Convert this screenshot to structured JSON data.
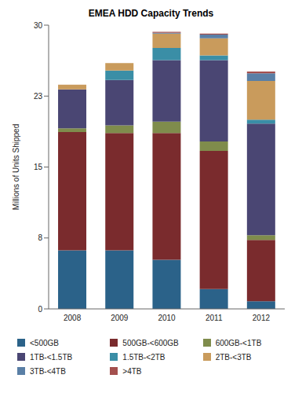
{
  "chart_data": {
    "type": "bar",
    "title": "EMEA HDD Capacity Trends",
    "y_label": "Millions of Units Shipped",
    "categories": [
      "2008",
      "2009",
      "2010",
      "2011",
      "2012"
    ],
    "stacked": true,
    "grid": false,
    "legend": "bottom",
    "ylim": [
      0,
      30
    ],
    "yticks": [
      0,
      {
        "value": 7.5,
        "label": "8"
      },
      15,
      {
        "value": 22.5,
        "label": "23"
      },
      30
    ],
    "series": [
      {
        "name": "<500GB",
        "color": "#2b6289",
        "values": [
          6.2,
          6.2,
          5.2,
          2.1,
          0.8
        ]
      },
      {
        "name": "500GB-<600GB",
        "color": "#7a2b2d",
        "values": [
          12.5,
          12.4,
          13.4,
          14.6,
          6.5
        ]
      },
      {
        "name": "600GB-<1TB",
        "color": "#7f8c4c",
        "values": [
          0.4,
          0.8,
          1.2,
          1.0,
          0.5
        ]
      },
      {
        "name": "1TB-<1.5TB",
        "color": "#4a4673",
        "values": [
          4.1,
          4.8,
          6.5,
          8.6,
          11.8
        ]
      },
      {
        "name": "1.5TB-<2TB",
        "color": "#3a8ea6",
        "values": [
          0,
          1.0,
          1.3,
          0.5,
          0.4
        ]
      },
      {
        "name": "2TB-<3TB",
        "color": "#c99b5c",
        "values": [
          0.5,
          0.8,
          1.5,
          1.8,
          4.1
        ]
      },
      {
        "name": "3TB-<4TB",
        "color": "#5a7fa6",
        "values": [
          0,
          0,
          0.1,
          0.4,
          0.8
        ]
      },
      {
        "name": ">4TB",
        "color": "#a4504e",
        "values": [
          0,
          0,
          0.1,
          0.1,
          0.2
        ]
      }
    ]
  }
}
